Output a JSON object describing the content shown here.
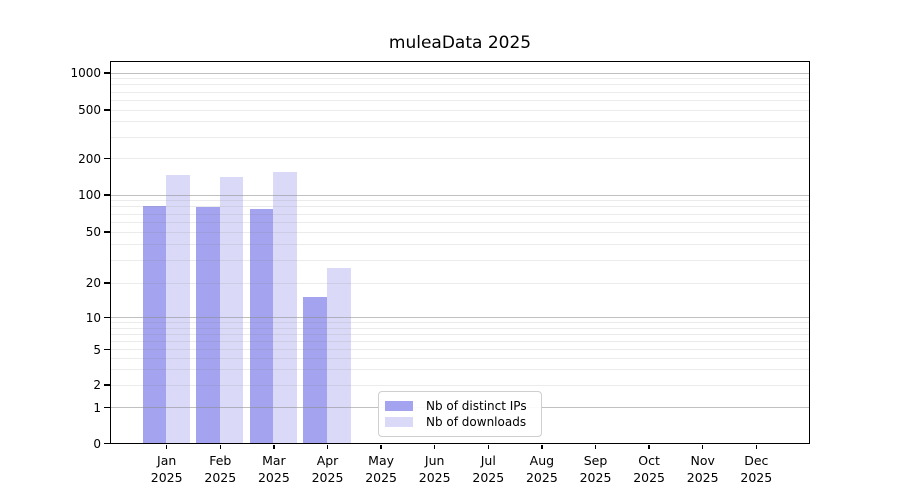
{
  "title": "muleaData 2025",
  "year": "2025",
  "colors": {
    "distinct_ips": "#a3a3f0",
    "downloads": "#dadaf8",
    "axis": "#000000",
    "major_grid": "#c6c6c6",
    "minor_grid": "#e9e9e9"
  },
  "chart_data": {
    "type": "bar",
    "title": "muleaData 2025",
    "categories": [
      "Jan 2025",
      "Feb 2025",
      "Mar 2025",
      "Apr 2025",
      "May 2025",
      "Jun 2025",
      "Jul 2025",
      "Aug 2025",
      "Sep 2025",
      "Oct 2025",
      "Nov 2025",
      "Dec 2025"
    ],
    "series": [
      {
        "name": "Nb of distinct IPs",
        "color": "#a3a3f0",
        "values": [
          81,
          79,
          76,
          15,
          0,
          0,
          0,
          0,
          0,
          0,
          0,
          0
        ]
      },
      {
        "name": "Nb of downloads",
        "color": "#dadaf8",
        "values": [
          145,
          140,
          153,
          26,
          0,
          0,
          0,
          0,
          0,
          0,
          0,
          0
        ]
      }
    ],
    "xlabel": "",
    "ylabel": "",
    "yscale": "symlog",
    "yticks": [
      0,
      1,
      2,
      5,
      10,
      20,
      50,
      100,
      200,
      500,
      1000
    ],
    "ylim": [
      0,
      1250
    ],
    "grid": true,
    "legend_position": "bottom-center"
  },
  "legend": {
    "items": [
      {
        "label": "Nb of distinct IPs"
      },
      {
        "label": "Nb of downloads"
      }
    ]
  }
}
